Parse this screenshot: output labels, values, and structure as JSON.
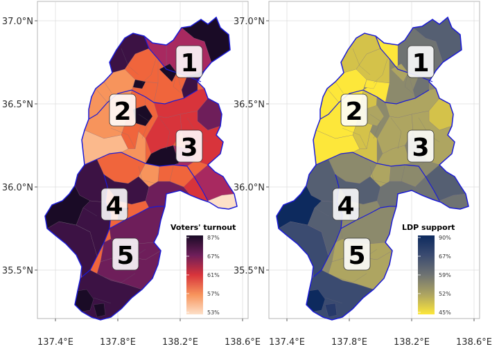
{
  "axes": {
    "x_ticks": [
      "137.4°E",
      "137.8°E",
      "138.2°E",
      "138.6°E"
    ],
    "y_ticks": [
      "37.0°N",
      "36.5°N",
      "36.0°N",
      "35.5°N"
    ]
  },
  "panels": [
    {
      "legend_title": "Voters' turnout",
      "legend_values": [
        "87%",
        "67%",
        "61%",
        "57%",
        "53%"
      ],
      "colors": [
        "#1a0b26",
        "#3c1244",
        "#6e1e5a",
        "#a82960",
        "#d8343b",
        "#f0653c",
        "#f7945c",
        "#fbb98c",
        "#fde0c8"
      ],
      "district_labels": [
        "1",
        "2",
        "3",
        "4",
        "5"
      ]
    },
    {
      "legend_title": "LDP support",
      "legend_values": [
        "90%",
        "67%",
        "59%",
        "52%",
        "45%"
      ],
      "colors": [
        "#0d2a5e",
        "#273a6a",
        "#3b4b70",
        "#555f72",
        "#6f7372",
        "#8c8a6c",
        "#aea561",
        "#d4c24a",
        "#fde73a"
      ],
      "district_labels": [
        "1",
        "2",
        "3",
        "4",
        "5"
      ]
    }
  ]
}
